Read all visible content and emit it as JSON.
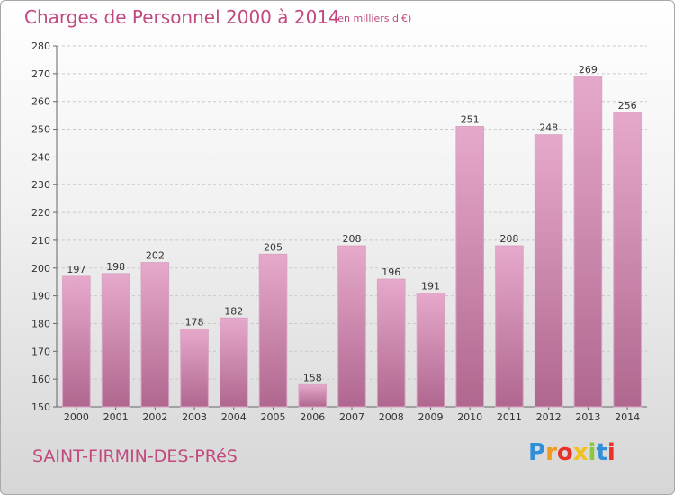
{
  "title": "Charges de Personnel 2000 à 2014",
  "unit_note": "(en milliers d'€)",
  "location": "SAINT-FIRMIN-DES-PRéS",
  "brand": {
    "letters": [
      "P",
      "r",
      "o",
      "x",
      "i",
      "t",
      "i"
    ],
    "colors": [
      "#2f8fd8",
      "#f39a1e",
      "#e8312a",
      "#f3c21a",
      "#8ec63f",
      "#2f8fd8",
      "#e8312a"
    ]
  },
  "colors": {
    "bar_top": "#e6a9cb",
    "bar_bottom": "#b0678f",
    "text": "#c2497f"
  },
  "chart_data": {
    "type": "bar",
    "categories": [
      "2000",
      "2001",
      "2002",
      "2003",
      "2004",
      "2005",
      "2006",
      "2007",
      "2008",
      "2009",
      "2010",
      "2011",
      "2012",
      "2013",
      "2014"
    ],
    "values": [
      197,
      198,
      202,
      178,
      182,
      205,
      158,
      208,
      196,
      191,
      251,
      208,
      248,
      269,
      256
    ],
    "ylim": [
      150,
      280
    ],
    "yticks": [
      150,
      160,
      170,
      180,
      190,
      200,
      210,
      220,
      230,
      240,
      250,
      260,
      270,
      280
    ],
    "grid": true,
    "xlabel": "",
    "ylabel": ""
  }
}
